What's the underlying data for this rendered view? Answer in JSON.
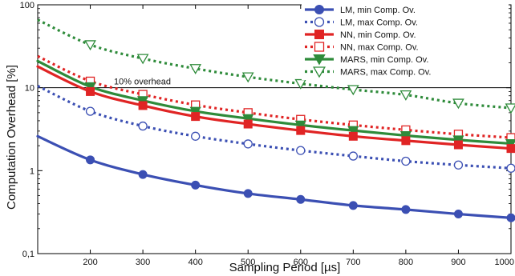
{
  "chart_data": {
    "type": "line",
    "xlabel": "Sampling Period [µs]",
    "ylabel": "Computation Overhead [%]",
    "x_scale": "linear",
    "y_scale": "log",
    "xlim": [
      100,
      1000
    ],
    "ylim": [
      0.1,
      100
    ],
    "x_ticks": [
      200,
      300,
      400,
      500,
      600,
      700,
      800,
      900,
      1000
    ],
    "x_tick_labels": [
      "200",
      "300",
      "400",
      "500",
      "600",
      "700",
      "800",
      "900",
      "1000"
    ],
    "y_ticks": [
      0.1,
      1,
      10,
      100
    ],
    "y_tick_labels": [
      "0,1",
      "1",
      "10",
      "100"
    ],
    "grid": false,
    "legend_position": "top-right",
    "reference_line": {
      "y": 10,
      "label": "10% overhead"
    },
    "x": [
      200,
      300,
      400,
      500,
      600,
      700,
      800,
      900,
      1000
    ],
    "series": [
      {
        "name": "LM, min Comp. Ov.",
        "color": "#3b4fb3",
        "style": "solid",
        "marker": "filled-circle",
        "start": {
          "x": 100,
          "y": 2.6
        },
        "values": [
          1.35,
          0.9,
          0.67,
          0.53,
          0.45,
          0.38,
          0.34,
          0.3,
          0.27
        ]
      },
      {
        "name": "LM, max Comp. Ov.",
        "color": "#3b4fb3",
        "style": "dotted",
        "marker": "open-circle",
        "start": {
          "x": 100,
          "y": 10.5
        },
        "values": [
          5.2,
          3.45,
          2.6,
          2.1,
          1.75,
          1.5,
          1.3,
          1.17,
          1.07
        ]
      },
      {
        "name": "NN, min Comp. Ov.",
        "color": "#e02424",
        "style": "solid",
        "marker": "filled-square",
        "start": {
          "x": 100,
          "y": 18
        },
        "values": [
          9.0,
          6.1,
          4.5,
          3.65,
          3.05,
          2.6,
          2.3,
          2.05,
          1.85
        ]
      },
      {
        "name": "NN, max Comp. Ov.",
        "color": "#e02424",
        "style": "dotted",
        "marker": "open-square",
        "start": {
          "x": 100,
          "y": 24
        },
        "values": [
          12.0,
          8.3,
          6.2,
          5.0,
          4.15,
          3.55,
          3.1,
          2.75,
          2.5
        ]
      },
      {
        "name": "MARS, min Comp. Ov.",
        "color": "#2e8b3a",
        "style": "solid",
        "marker": "filled-triangle-down",
        "start": {
          "x": 100,
          "y": 21
        },
        "values": [
          10.3,
          7.0,
          5.2,
          4.25,
          3.55,
          3.05,
          2.65,
          2.35,
          2.12
        ]
      },
      {
        "name": "MARS, max Comp. Ov.",
        "color": "#2e8b3a",
        "style": "dotted",
        "marker": "open-triangle-down",
        "start": {
          "x": 100,
          "y": 66
        },
        "values": [
          33,
          22.5,
          17,
          13.5,
          11.2,
          9.5,
          8.2,
          6.5,
          5.7
        ]
      }
    ]
  }
}
